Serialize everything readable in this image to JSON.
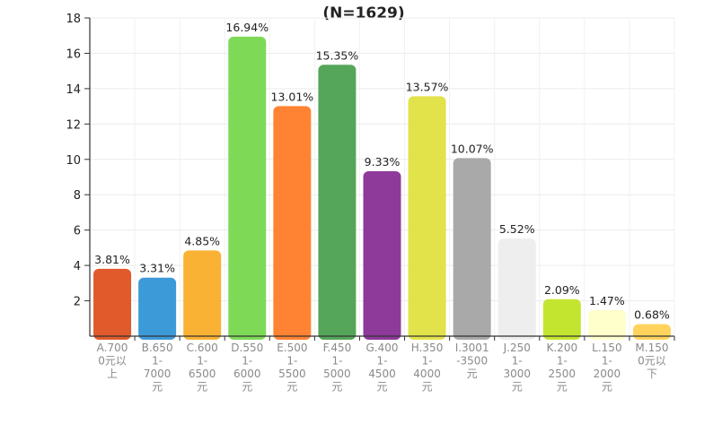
{
  "chart_data": {
    "type": "bar",
    "title": "(N=1629)",
    "ylim": [
      0,
      18
    ],
    "yticks": [
      "2",
      "4",
      "6",
      "8",
      "10",
      "12",
      "14",
      "16",
      "18"
    ],
    "grid": true,
    "categories": [
      [
        "A.700",
        "0元以",
        "上"
      ],
      [
        "B.650",
        "1-",
        "7000",
        "元"
      ],
      [
        "C.600",
        "1-",
        "6500",
        "元"
      ],
      [
        "D.550",
        "1-",
        "6000",
        "元"
      ],
      [
        "E.500",
        "1-",
        "5500",
        "元"
      ],
      [
        "F.450",
        "1-",
        "5000",
        "元"
      ],
      [
        "G.400",
        "1-",
        "4500",
        "元"
      ],
      [
        "H.350",
        "1-",
        "4000",
        "元"
      ],
      [
        "I.3001",
        "-3500",
        "元"
      ],
      [
        "J.250",
        "1-",
        "3000",
        "元"
      ],
      [
        "K.200",
        "1-",
        "2500",
        "元"
      ],
      [
        "L.150",
        "1-",
        "2000",
        "元"
      ],
      [
        "M.150",
        "0元以",
        "下"
      ]
    ],
    "values": [
      3.81,
      3.31,
      4.85,
      16.94,
      13.01,
      15.35,
      9.33,
      13.57,
      10.07,
      5.52,
      2.09,
      1.47,
      0.68
    ],
    "labels": [
      "3.81%",
      "3.31%",
      "4.85%",
      "16.94%",
      "13.01%",
      "15.35%",
      "9.33%",
      "13.57%",
      "10.07%",
      "5.52%",
      "2.09%",
      "1.47%",
      "0.68%"
    ],
    "colors": [
      "#e05a2b",
      "#3d9ad9",
      "#f9b233",
      "#7ed957",
      "#ff8333",
      "#55a65a",
      "#8e3a9a",
      "#e2e24b",
      "#a9a9a9",
      "#eeeeee",
      "#c4e530",
      "#ffffcc",
      "#ffd35c"
    ]
  }
}
